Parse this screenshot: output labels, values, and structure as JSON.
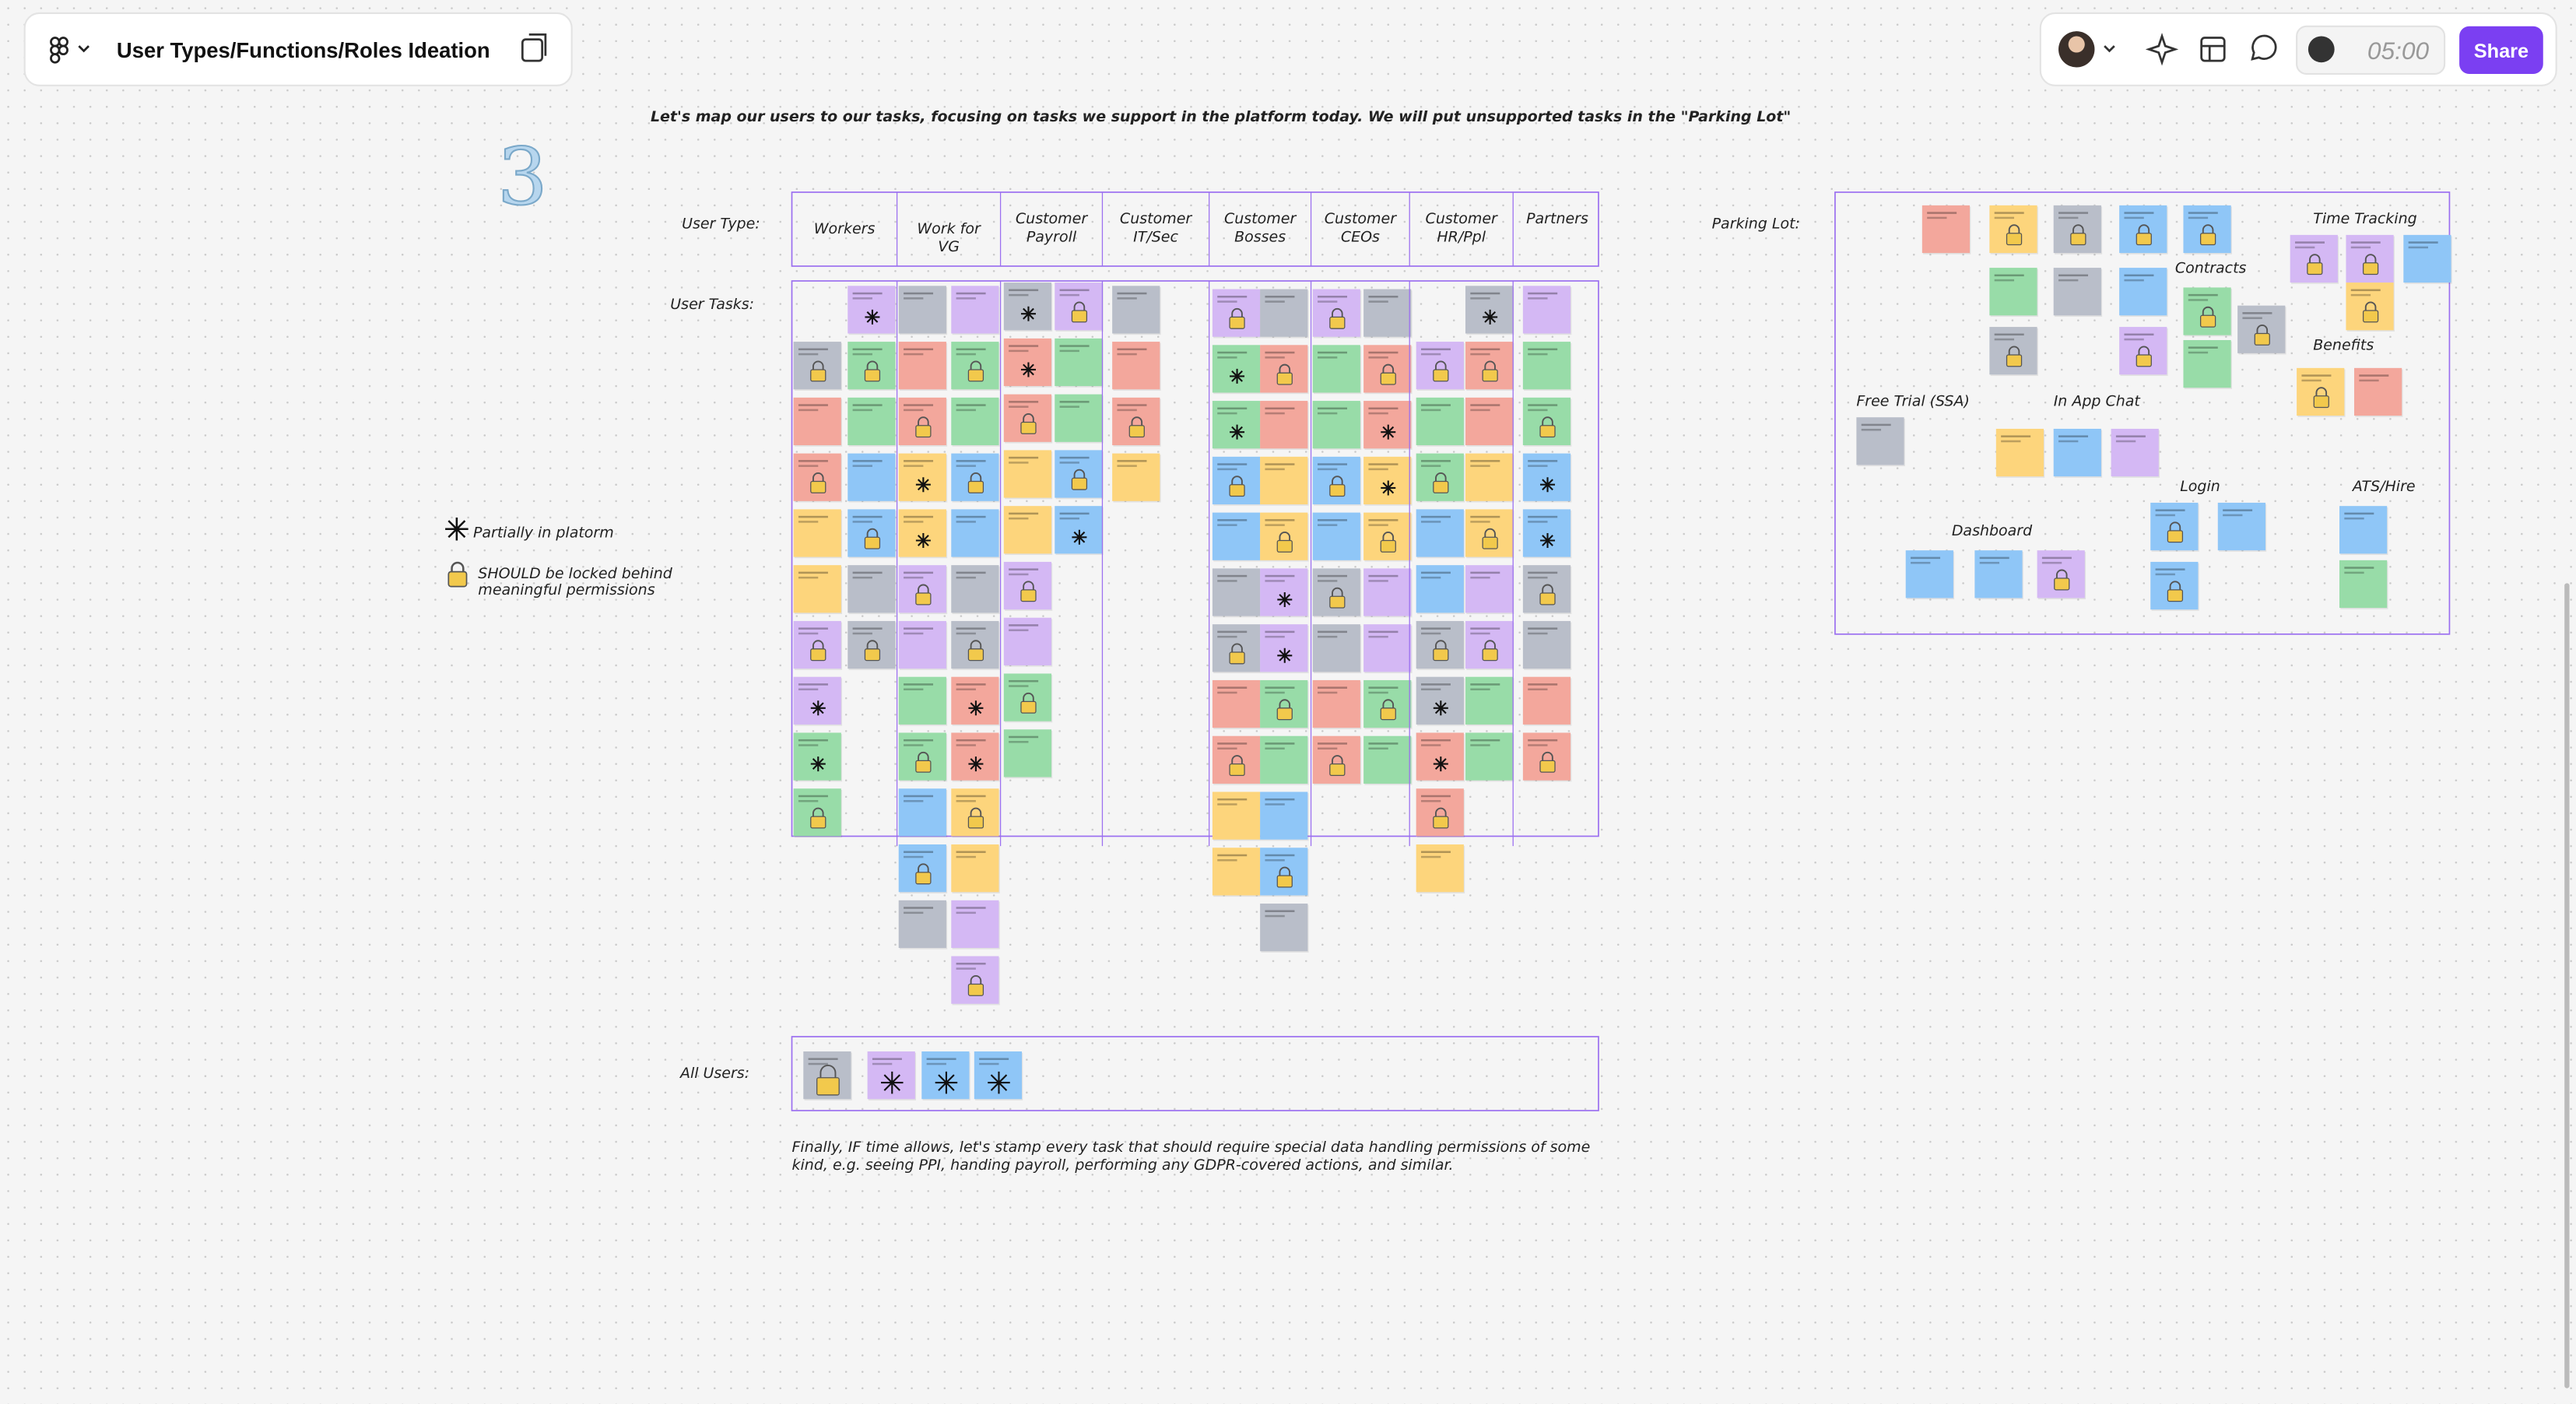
{
  "toolbar": {
    "file_title": "User Types/Functions/Roles Ideation",
    "timer": "05:00",
    "share": "Share"
  },
  "board": {
    "instruction": "Let's map our users to our tasks, focusing on tasks we support in the platform today. We will put unsupported tasks in the \"Parking Lot\"",
    "step_number": "3",
    "user_type_label": "User Type:",
    "user_tasks_label": "User Tasks:",
    "columns": [
      "Workers",
      "Work for VG",
      "Customer Payroll",
      "Customer IT/Sec",
      "Customer Bosses",
      "Customer CEOs",
      "Customer HR/Ppl",
      "Partners"
    ],
    "legend": {
      "partial": "Partially in platorm",
      "locked": "SHOULD be locked behind meaningful permissions"
    },
    "parking_lot": {
      "label": "Parking Lot:",
      "groups": [
        "Time Tracking",
        "Contracts",
        "Benefits",
        "Free Trial (SSA)",
        "In App Chat",
        "Login",
        "ATS/Hire",
        "Dashboard"
      ]
    },
    "all_users_label": "All Users:",
    "footer_note": "Finally, IF time allows, let's stamp every task that should require special data handling permissions of some kind, e.g. seeing PPI, handing payroll, performing any GDPR-covered actions, and similar."
  }
}
